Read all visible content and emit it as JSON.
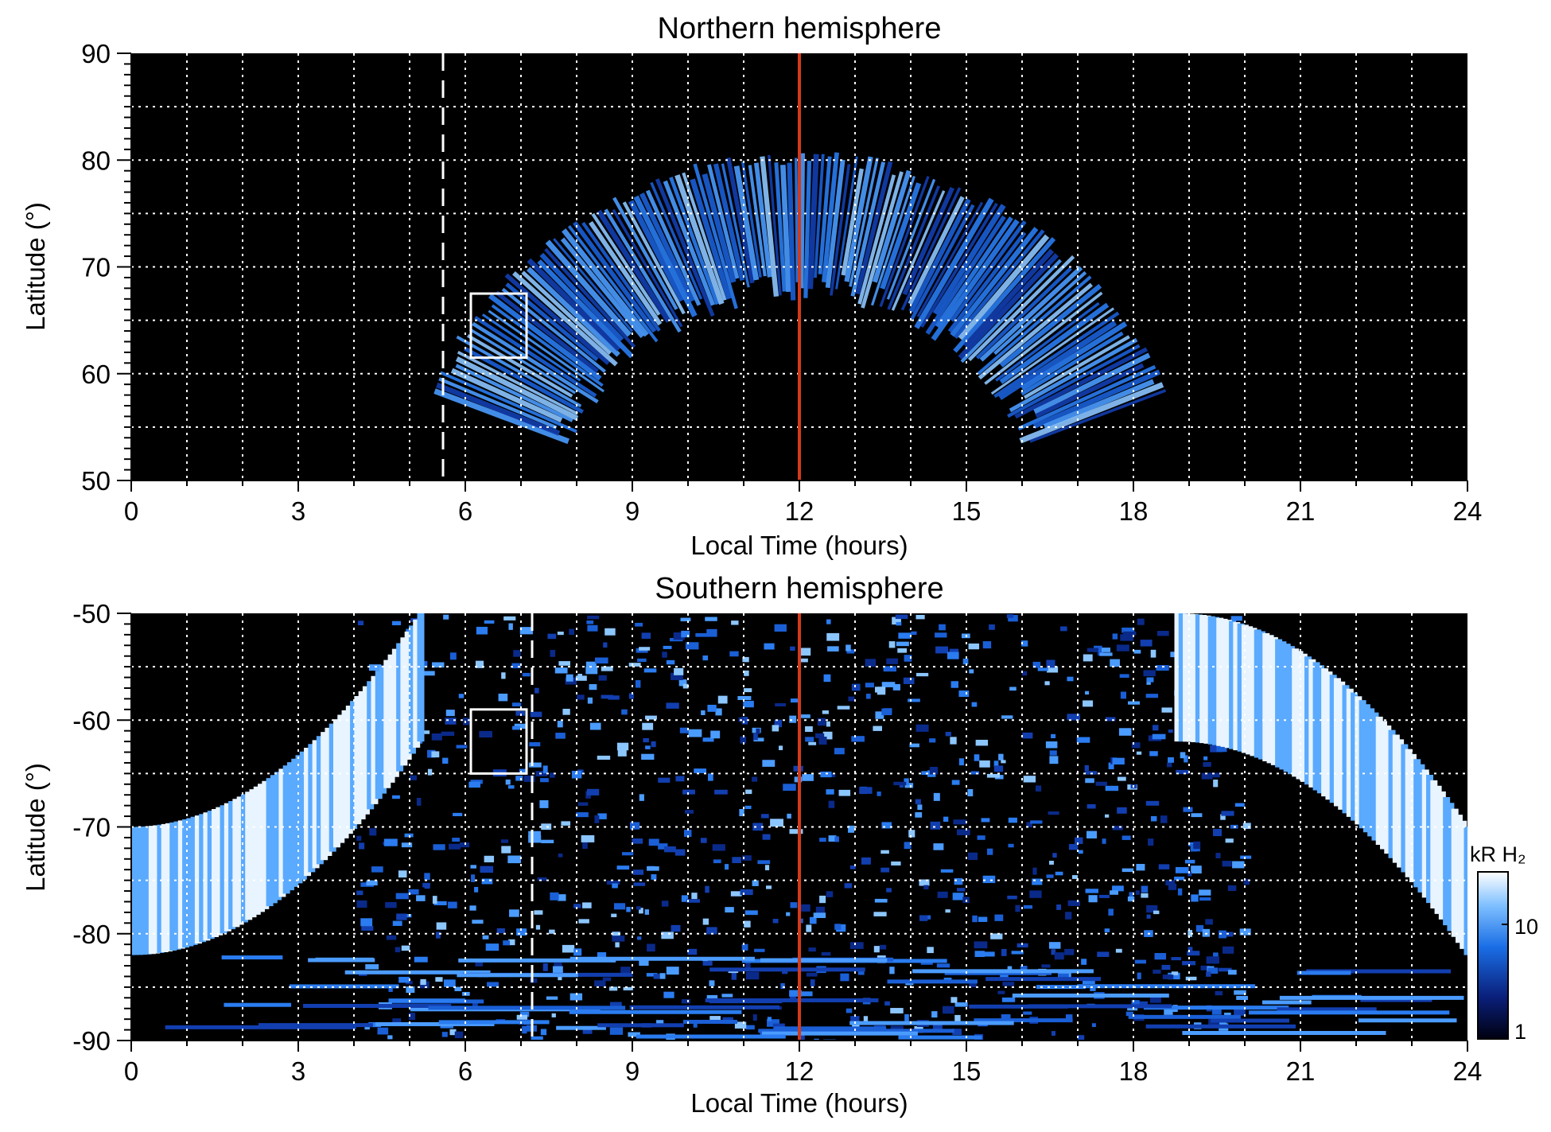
{
  "chart_data": [
    {
      "type": "heatmap",
      "title": "Northern hemisphere",
      "xlabel": "Local Time (hours)",
      "ylabel": "Latitude (°)",
      "xlim": [
        0,
        24
      ],
      "ylim": [
        50,
        90
      ],
      "xticks": [
        "0",
        "3",
        "6",
        "9",
        "12",
        "15",
        "18",
        "21",
        "24"
      ],
      "yticks": [
        "50",
        "60",
        "70",
        "80",
        "90"
      ],
      "grid": true,
      "reference_line": {
        "local_time": 12,
        "color": "#d43a1a"
      },
      "dashed_line": {
        "local_time": 5.6,
        "color": "#ffffff"
      },
      "box": {
        "lt_range": [
          6.1,
          7.1
        ],
        "lat_range": [
          61.5,
          67.5
        ]
      },
      "emission_region": {
        "lt_range": [
          8.4,
          16.3
        ],
        "lat_peak": 68.2,
        "description_color": "blue"
      }
    },
    {
      "type": "heatmap",
      "title": "Southern hemisphere",
      "xlabel": "Local Time (hours)",
      "ylabel": "Latitude (°)",
      "xlim": [
        0,
        24
      ],
      "ylim": [
        -90,
        -50
      ],
      "xticks": [
        "0",
        "3",
        "6",
        "9",
        "12",
        "15",
        "18",
        "21",
        "24"
      ],
      "yticks": [
        "-50",
        "-60",
        "-70",
        "-80",
        "-90"
      ],
      "grid": true,
      "reference_line": {
        "local_time": 12,
        "color": "#d43a1a"
      },
      "dashed_line": {
        "local_time": 7.2,
        "color": "#ffffff"
      },
      "box": {
        "lt_range": [
          6.1,
          7.1
        ],
        "lat_range": [
          -65,
          -59
        ]
      },
      "colorbar": {
        "label": "kR H₂",
        "ticks": [
          "1",
          "10"
        ],
        "scale": "log",
        "range": [
          1,
          30
        ]
      }
    }
  ],
  "colors": {
    "background": "#000000",
    "grid": "#ffffff",
    "noon_line": "#d43a1a",
    "emission_low": "#0a1f7a",
    "emission_mid": "#1a6ee6",
    "emission_high": "#dff0ff"
  }
}
